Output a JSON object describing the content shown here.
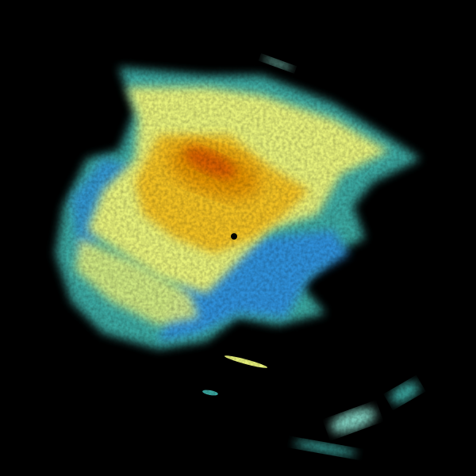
{
  "image": {
    "kind": "weather radar reflectivity sweep",
    "background_color": "#000000",
    "palette": {
      "weak": "#3aa7a0",
      "light": "#2f8fd8",
      "moderate_low": "#7fd0c0",
      "moderate": "#e6f07a",
      "moderate_high": "#f0c020",
      "strong": "#e09000",
      "very_strong": "#d04a00"
    }
  }
}
